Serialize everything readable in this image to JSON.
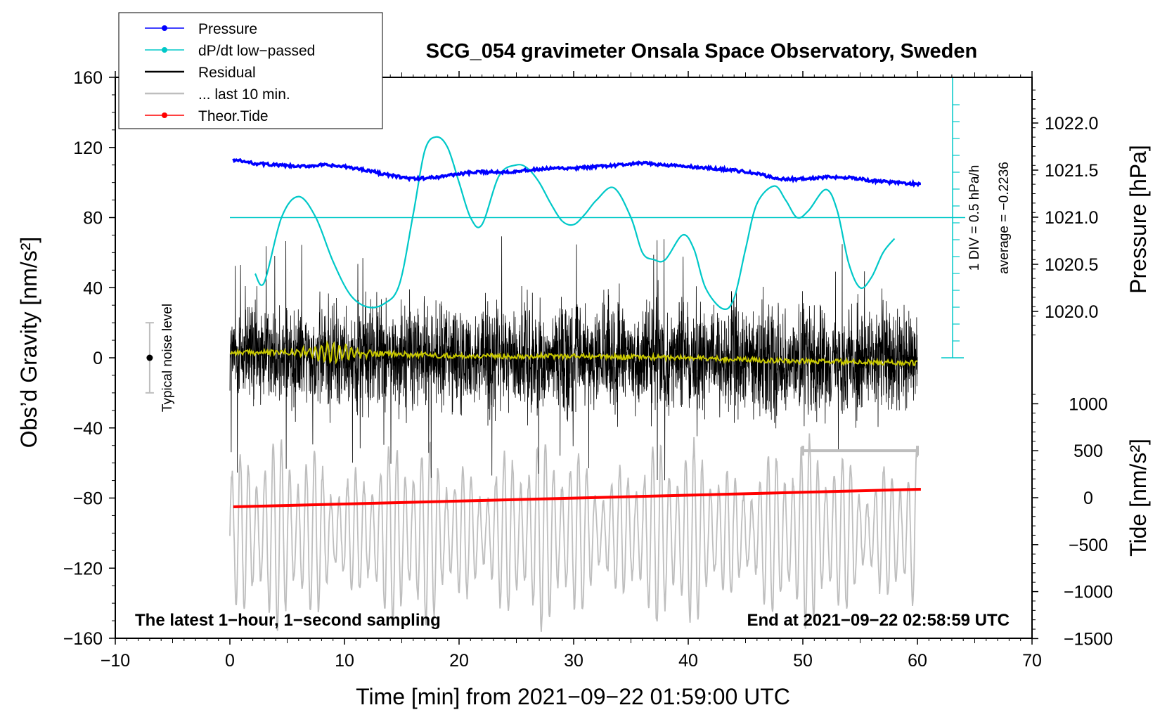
{
  "chart_data": {
    "type": "line",
    "title": "SCG_054 gravimeter Onsala Space Observatory, Sweden",
    "xlabel": "Time [min] from 2021−09−22 01:59:00 UTC",
    "ylabel_left": "Obs’d Gravity [nm/s²]",
    "ylabel_right_top": "Pressure [hPa]",
    "ylabel_right_bottom": "Tide [nm/s²]",
    "xlim": [
      -10,
      70
    ],
    "ylim_left": [
      -160,
      160
    ],
    "x_ticks": [
      -10,
      0,
      10,
      20,
      30,
      40,
      50,
      60,
      70
    ],
    "x_tick_labels": [
      "−10",
      "0",
      "10",
      "20",
      "30",
      "40",
      "50",
      "60",
      "70"
    ],
    "y_ticks_left": [
      -160,
      -120,
      -80,
      -40,
      0,
      40,
      80,
      120,
      160
    ],
    "y_tick_labels_left": [
      "−160",
      "−120",
      "−80",
      "−40",
      "0",
      "40",
      "80",
      "120",
      "160"
    ],
    "pressure_ticks": [
      1020.0,
      1020.5,
      1021.0,
      1021.5,
      1022.0
    ],
    "pressure_tick_labels": [
      "1020.0",
      "1020.5",
      "1021.0",
      "1021.5",
      "1022.0"
    ],
    "tide_ticks": [
      -1500,
      -1000,
      -500,
      0,
      500,
      1000
    ],
    "tide_tick_labels": [
      "−1500",
      "−1000",
      "−500",
      "0",
      "500",
      "1000"
    ],
    "legend": [
      {
        "label": "Pressure",
        "color": "#0000ff",
        "marker": true
      },
      {
        "label": "dP/dt low−passed",
        "color": "#00c8c8",
        "marker": true
      },
      {
        "label": "Residual",
        "color": "#000000",
        "marker": false
      },
      {
        "label": "... last 10 min.",
        "color": "#bebebe",
        "marker": false
      },
      {
        "label": "Theor.Tide",
        "color": "#ff0000",
        "marker": true
      }
    ],
    "series": [
      {
        "name": "Pressure",
        "color": "#0000ff",
        "x": [
          0.3,
          2,
          4,
          6,
          8,
          10,
          12,
          14,
          16,
          18,
          20,
          22,
          24,
          26,
          28,
          30,
          32,
          34,
          36,
          38,
          40,
          42,
          44,
          46,
          48,
          50,
          52,
          54,
          56,
          58,
          60.3
        ],
        "values": [
          113,
          111,
          110,
          109,
          110,
          109,
          107,
          104,
          102,
          103,
          105,
          106,
          106,
          107,
          108,
          108,
          109,
          110,
          111,
          110,
          109,
          108,
          107,
          105,
          102,
          102,
          103,
          103,
          101,
          100,
          99
        ]
      },
      {
        "name": "dP/dt low−passed",
        "color": "#00c8c8",
        "x": [
          2.2,
          3,
          4.5,
          6,
          7.5,
          9,
          10.5,
          12,
          13.5,
          14.8,
          16,
          17,
          18,
          19,
          20,
          21,
          22,
          23.5,
          25,
          26,
          27,
          28,
          29,
          30,
          31,
          32,
          33.5,
          35,
          36,
          37,
          38,
          39.5,
          40.5,
          41.5,
          43,
          44,
          45,
          46,
          47.5,
          48.5,
          49.5,
          50.5,
          52,
          53,
          54,
          55,
          56,
          57,
          58
        ],
        "values": [
          48,
          43,
          80,
          92,
          80,
          55,
          36,
          29,
          31,
          42,
          82,
          118,
          126,
          120,
          100,
          80,
          76,
          104,
          110,
          108,
          100,
          88,
          78,
          76,
          82,
          90,
          97,
          80,
          60,
          56,
          56,
          70,
          62,
          40,
          28,
          34,
          62,
          88,
          98,
          90,
          80,
          84,
          96,
          84,
          54,
          40,
          46,
          60,
          68
        ]
      },
      {
        "name": "Residual",
        "color": "#000000",
        "x": [
          0,
          60
        ],
        "values": [
          2,
          -2
        ],
        "envelope": 45
      },
      {
        "name": "Residual low−passed",
        "color": "#c8c800",
        "x": [
          0,
          10,
          20,
          30,
          40,
          50,
          60
        ],
        "values": [
          3,
          3,
          1,
          1,
          0,
          -2,
          -3
        ]
      },
      {
        "name": "... last 10 min.",
        "color": "#bebebe",
        "x": [
          0,
          60
        ],
        "values": [
          -100,
          -100
        ],
        "envelope": 55
      },
      {
        "name": "Theor.Tide",
        "color": "#ff0000",
        "x": [
          0.3,
          60.3
        ],
        "values": [
          -85,
          -75
        ]
      }
    ],
    "reference_line": {
      "name": "dP/dt zero",
      "y": 80
    },
    "noise_indicator": {
      "label": "Typical noise level",
      "x": -7,
      "y_center": 0,
      "y_low": -20,
      "y_high": 20
    },
    "last_10_min_bar": {
      "x_start": 50,
      "x_end": 60,
      "y": -53
    },
    "side_text": {
      "scale": "1 DIV = 0.5 hPa/h",
      "average": "average = −0.2236"
    },
    "footer_left": "The latest 1−hour, 1−second sampling",
    "footer_right": "End at 2021−09−22 02:58:59 UTC"
  }
}
